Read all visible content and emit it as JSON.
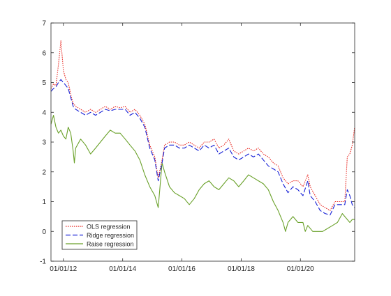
{
  "chart_data": {
    "type": "line",
    "title": "",
    "xlabel": "",
    "ylabel": "",
    "x_range": [
      "2011-08-01",
      "2021-10-31"
    ],
    "ylim": [
      -1,
      7
    ],
    "y_ticks": [
      -1,
      0,
      1,
      2,
      3,
      4,
      5,
      6,
      7
    ],
    "x_ticks": [
      {
        "date": "2012-01-01",
        "label": "01/01/12"
      },
      {
        "date": "2014-01-01",
        "label": "01/01/14"
      },
      {
        "date": "2016-01-01",
        "label": "01/01/16"
      },
      {
        "date": "2018-01-01",
        "label": "01/01/18"
      },
      {
        "date": "2020-01-01",
        "label": "01/01/20"
      }
    ],
    "grid": false,
    "legend_position": "bottom-left",
    "series": [
      {
        "name": "OLS regression",
        "color": "#e8231c",
        "style": "dotted",
        "points": [
          [
            "2011-08-01",
            4.8
          ],
          [
            "2011-09-01",
            4.95
          ],
          [
            "2011-10-01",
            4.9
          ],
          [
            "2011-11-01",
            5.6
          ],
          [
            "2011-12-01",
            6.4
          ],
          [
            "2012-01-01",
            5.4
          ],
          [
            "2012-02-01",
            5.1
          ],
          [
            "2012-03-01",
            5.0
          ],
          [
            "2012-04-01",
            4.6
          ],
          [
            "2012-05-01",
            4.3
          ],
          [
            "2012-06-01",
            4.2
          ],
          [
            "2012-08-01",
            4.1
          ],
          [
            "2012-10-01",
            4.0
          ],
          [
            "2012-12-01",
            4.1
          ],
          [
            "2013-02-01",
            4.0
          ],
          [
            "2013-04-01",
            4.1
          ],
          [
            "2013-06-01",
            4.2
          ],
          [
            "2013-08-01",
            4.1
          ],
          [
            "2013-10-01",
            4.2
          ],
          [
            "2013-12-01",
            4.15
          ],
          [
            "2014-02-01",
            4.2
          ],
          [
            "2014-04-01",
            4.0
          ],
          [
            "2014-06-01",
            4.1
          ],
          [
            "2014-08-01",
            3.9
          ],
          [
            "2014-10-01",
            3.6
          ],
          [
            "2014-12-01",
            2.9
          ],
          [
            "2015-02-01",
            2.5
          ],
          [
            "2015-03-15",
            1.8
          ],
          [
            "2015-05-01",
            2.4
          ],
          [
            "2015-06-01",
            2.9
          ],
          [
            "2015-08-01",
            3.0
          ],
          [
            "2015-10-01",
            3.0
          ],
          [
            "2015-12-01",
            2.9
          ],
          [
            "2016-02-01",
            2.9
          ],
          [
            "2016-04-01",
            3.0
          ],
          [
            "2016-06-01",
            2.9
          ],
          [
            "2016-08-01",
            2.8
          ],
          [
            "2016-10-01",
            3.0
          ],
          [
            "2016-12-01",
            3.0
          ],
          [
            "2017-02-01",
            3.1
          ],
          [
            "2017-04-01",
            2.8
          ],
          [
            "2017-06-01",
            2.9
          ],
          [
            "2017-08-01",
            3.1
          ],
          [
            "2017-10-01",
            2.7
          ],
          [
            "2017-12-01",
            2.6
          ],
          [
            "2018-02-01",
            2.7
          ],
          [
            "2018-04-01",
            2.8
          ],
          [
            "2018-06-01",
            2.7
          ],
          [
            "2018-08-01",
            2.8
          ],
          [
            "2018-10-01",
            2.6
          ],
          [
            "2018-12-01",
            2.5
          ],
          [
            "2019-02-01",
            2.3
          ],
          [
            "2019-04-01",
            2.2
          ],
          [
            "2019-06-01",
            1.8
          ],
          [
            "2019-08-01",
            1.6
          ],
          [
            "2019-10-01",
            1.7
          ],
          [
            "2019-12-01",
            1.7
          ],
          [
            "2020-02-01",
            1.5
          ],
          [
            "2020-04-01",
            1.9
          ],
          [
            "2020-05-01",
            1.5
          ],
          [
            "2020-07-01",
            1.2
          ],
          [
            "2020-09-01",
            0.9
          ],
          [
            "2020-11-01",
            0.8
          ],
          [
            "2021-01-01",
            0.7
          ],
          [
            "2021-03-01",
            1.0
          ],
          [
            "2021-05-01",
            1.0
          ],
          [
            "2021-07-01",
            1.0
          ],
          [
            "2021-08-01",
            2.5
          ],
          [
            "2021-09-01",
            2.6
          ],
          [
            "2021-10-01",
            2.9
          ],
          [
            "2021-10-31",
            3.5
          ]
        ]
      },
      {
        "name": "Ridge regression",
        "color": "#1620d6",
        "style": "dashed",
        "points": [
          [
            "2011-08-01",
            4.7
          ],
          [
            "2011-09-01",
            4.8
          ],
          [
            "2011-10-01",
            4.85
          ],
          [
            "2011-11-01",
            5.0
          ],
          [
            "2011-12-01",
            5.1
          ],
          [
            "2012-01-01",
            5.0
          ],
          [
            "2012-02-01",
            4.9
          ],
          [
            "2012-03-01",
            4.8
          ],
          [
            "2012-04-01",
            4.5
          ],
          [
            "2012-05-01",
            4.2
          ],
          [
            "2012-06-01",
            4.1
          ],
          [
            "2012-08-01",
            4.0
          ],
          [
            "2012-10-01",
            3.9
          ],
          [
            "2012-12-01",
            4.0
          ],
          [
            "2013-02-01",
            3.9
          ],
          [
            "2013-04-01",
            4.0
          ],
          [
            "2013-06-01",
            4.1
          ],
          [
            "2013-08-01",
            4.05
          ],
          [
            "2013-10-01",
            4.1
          ],
          [
            "2013-12-01",
            4.1
          ],
          [
            "2014-02-01",
            4.1
          ],
          [
            "2014-04-01",
            3.9
          ],
          [
            "2014-06-01",
            4.0
          ],
          [
            "2014-08-01",
            3.8
          ],
          [
            "2014-10-01",
            3.5
          ],
          [
            "2014-12-01",
            2.8
          ],
          [
            "2015-02-01",
            2.4
          ],
          [
            "2015-03-15",
            1.7
          ],
          [
            "2015-05-01",
            2.3
          ],
          [
            "2015-06-01",
            2.8
          ],
          [
            "2015-08-01",
            2.9
          ],
          [
            "2015-10-01",
            2.9
          ],
          [
            "2015-12-01",
            2.8
          ],
          [
            "2016-02-01",
            2.8
          ],
          [
            "2016-04-01",
            2.9
          ],
          [
            "2016-06-01",
            2.8
          ],
          [
            "2016-08-01",
            2.7
          ],
          [
            "2016-10-01",
            2.9
          ],
          [
            "2016-12-01",
            2.8
          ],
          [
            "2017-02-01",
            2.9
          ],
          [
            "2017-04-01",
            2.6
          ],
          [
            "2017-06-01",
            2.7
          ],
          [
            "2017-08-01",
            2.8
          ],
          [
            "2017-10-01",
            2.5
          ],
          [
            "2017-12-01",
            2.4
          ],
          [
            "2018-02-01",
            2.5
          ],
          [
            "2018-04-01",
            2.6
          ],
          [
            "2018-06-01",
            2.5
          ],
          [
            "2018-08-01",
            2.6
          ],
          [
            "2018-10-01",
            2.4
          ],
          [
            "2018-12-01",
            2.2
          ],
          [
            "2019-02-01",
            2.1
          ],
          [
            "2019-04-01",
            2.0
          ],
          [
            "2019-06-01",
            1.6
          ],
          [
            "2019-08-01",
            1.3
          ],
          [
            "2019-10-01",
            1.5
          ],
          [
            "2019-12-01",
            1.4
          ],
          [
            "2020-02-01",
            1.2
          ],
          [
            "2020-04-01",
            1.7
          ],
          [
            "2020-05-01",
            1.2
          ],
          [
            "2020-07-01",
            1.0
          ],
          [
            "2020-09-01",
            0.7
          ],
          [
            "2020-11-01",
            0.6
          ],
          [
            "2021-01-01",
            0.55
          ],
          [
            "2021-03-01",
            0.9
          ],
          [
            "2021-05-01",
            0.9
          ],
          [
            "2021-07-01",
            0.9
          ],
          [
            "2021-08-01",
            1.4
          ],
          [
            "2021-09-01",
            1.2
          ],
          [
            "2021-10-01",
            0.9
          ],
          [
            "2021-10-31",
            0.8
          ]
        ]
      },
      {
        "name": "Raise regression",
        "color": "#6aa12a",
        "style": "solid",
        "points": [
          [
            "2011-08-01",
            3.6
          ],
          [
            "2011-09-01",
            3.9
          ],
          [
            "2011-10-01",
            3.5
          ],
          [
            "2011-11-01",
            3.3
          ],
          [
            "2011-12-01",
            3.4
          ],
          [
            "2012-01-01",
            3.2
          ],
          [
            "2012-02-01",
            3.1
          ],
          [
            "2012-03-01",
            3.5
          ],
          [
            "2012-04-01",
            3.3
          ],
          [
            "2012-05-01",
            2.7
          ],
          [
            "2012-05-15",
            2.3
          ],
          [
            "2012-06-01",
            2.8
          ],
          [
            "2012-08-01",
            3.1
          ],
          [
            "2012-10-01",
            2.9
          ],
          [
            "2012-12-01",
            2.6
          ],
          [
            "2013-02-01",
            2.8
          ],
          [
            "2013-04-01",
            3.0
          ],
          [
            "2013-06-01",
            3.2
          ],
          [
            "2013-08-01",
            3.4
          ],
          [
            "2013-10-01",
            3.3
          ],
          [
            "2013-12-01",
            3.3
          ],
          [
            "2014-02-01",
            3.1
          ],
          [
            "2014-04-01",
            2.9
          ],
          [
            "2014-06-01",
            2.7
          ],
          [
            "2014-08-01",
            2.4
          ],
          [
            "2014-10-01",
            1.9
          ],
          [
            "2014-12-01",
            1.5
          ],
          [
            "2015-02-01",
            1.2
          ],
          [
            "2015-03-15",
            0.8
          ],
          [
            "2015-05-01",
            2.3
          ],
          [
            "2015-06-01",
            2.0
          ],
          [
            "2015-08-01",
            1.5
          ],
          [
            "2015-10-01",
            1.3
          ],
          [
            "2015-12-01",
            1.2
          ],
          [
            "2016-02-01",
            1.1
          ],
          [
            "2016-04-01",
            0.9
          ],
          [
            "2016-06-01",
            1.1
          ],
          [
            "2016-08-01",
            1.4
          ],
          [
            "2016-10-01",
            1.6
          ],
          [
            "2016-12-01",
            1.7
          ],
          [
            "2017-02-01",
            1.5
          ],
          [
            "2017-04-01",
            1.4
          ],
          [
            "2017-06-01",
            1.6
          ],
          [
            "2017-08-01",
            1.8
          ],
          [
            "2017-10-01",
            1.7
          ],
          [
            "2017-12-01",
            1.5
          ],
          [
            "2018-02-01",
            1.7
          ],
          [
            "2018-04-01",
            1.9
          ],
          [
            "2018-06-01",
            1.8
          ],
          [
            "2018-08-01",
            1.7
          ],
          [
            "2018-10-01",
            1.6
          ],
          [
            "2018-12-01",
            1.4
          ],
          [
            "2019-02-01",
            1.0
          ],
          [
            "2019-04-01",
            0.7
          ],
          [
            "2019-06-01",
            0.3
          ],
          [
            "2019-07-01",
            0.0
          ],
          [
            "2019-08-01",
            0.3
          ],
          [
            "2019-10-01",
            0.5
          ],
          [
            "2019-12-01",
            0.3
          ],
          [
            "2020-02-01",
            0.3
          ],
          [
            "2020-03-01",
            0.0
          ],
          [
            "2020-04-01",
            0.2
          ],
          [
            "2020-06-01",
            0.0
          ],
          [
            "2020-08-01",
            0.0
          ],
          [
            "2020-10-01",
            0.0
          ],
          [
            "2020-12-01",
            0.1
          ],
          [
            "2021-02-01",
            0.2
          ],
          [
            "2021-04-01",
            0.3
          ],
          [
            "2021-06-01",
            0.6
          ],
          [
            "2021-07-01",
            0.5
          ],
          [
            "2021-08-01",
            0.4
          ],
          [
            "2021-09-01",
            0.3
          ],
          [
            "2021-10-01",
            0.4
          ],
          [
            "2021-10-31",
            0.4
          ]
        ]
      }
    ]
  }
}
